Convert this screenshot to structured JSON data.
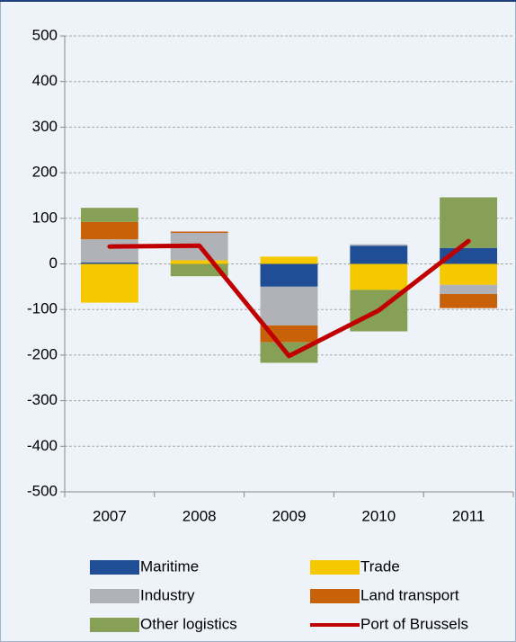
{
  "chart_data": {
    "type": "bar",
    "categories": [
      "2007",
      "2008",
      "2009",
      "2010",
      "2011"
    ],
    "series": [
      {
        "name": "Maritime",
        "color": "#1f4e96",
        "values": [
          3,
          0,
          -50,
          40,
          35
        ]
      },
      {
        "name": "Trade",
        "color": "#f5c800",
        "values": [
          -85,
          8,
          16,
          -57,
          -46
        ]
      },
      {
        "name": "Industry",
        "color": "#b1b1b8",
        "values": [
          51,
          60,
          -85,
          3,
          -20
        ]
      },
      {
        "name": "Land transport",
        "color": "#c8620a",
        "values": [
          38,
          3,
          -37,
          0,
          -31
        ]
      },
      {
        "name": "Other logistics",
        "color": "#86a055",
        "values": [
          31,
          -27,
          -45,
          -91,
          111
        ]
      },
      {
        "name": "Port of Brussels",
        "type": "line",
        "color": "#c00000",
        "values": [
          38,
          40,
          -202,
          -102,
          50
        ]
      }
    ],
    "ylim": [
      -500,
      500
    ],
    "yticks": [
      -500,
      -400,
      -300,
      -200,
      -100,
      0,
      100,
      200,
      300,
      400,
      500
    ],
    "grid": true,
    "legend": "bottom"
  }
}
